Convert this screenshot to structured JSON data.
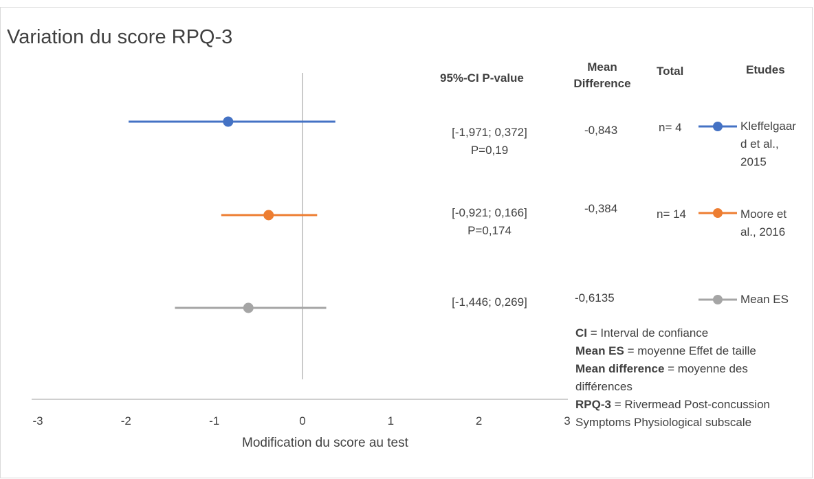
{
  "chart_data": {
    "type": "scatter",
    "title": "Variation du score RPQ-3",
    "xlabel": "Modification du score au test",
    "ylabel": "",
    "xlim": [
      -3,
      3
    ],
    "xticks": [
      -3,
      -2,
      -1,
      0,
      1,
      2,
      3
    ],
    "reference_line": 0,
    "columns": {
      "ci": "95%-CI P-value",
      "mean_difference": "Mean Difference",
      "total": "Total",
      "studies": "Etudes"
    },
    "rows": [
      {
        "name": "Kleffelgaard et al., 2015",
        "name_lines": [
          "Kleffelgaar",
          "d et al.,",
          "2015"
        ],
        "color": "#4472C4",
        "estimate": -0.843,
        "ci_low": -1.971,
        "ci_high": 0.372,
        "ci_text": "[-1,971; 0,372]",
        "p_text": "P=0,19",
        "mean_diff_text": "-0,843",
        "total_text": "n= 4"
      },
      {
        "name": "Moore et al., 2016",
        "name_lines": [
          "Moore et",
          "al., 2016"
        ],
        "color": "#ED7D31",
        "estimate": -0.384,
        "ci_low": -0.921,
        "ci_high": 0.166,
        "ci_text": "[-0,921; 0,166]",
        "p_text": "P=0,174",
        "mean_diff_text": "-0,384",
        "total_text": "n= 14"
      },
      {
        "name": "Mean ES",
        "name_lines": [
          "Mean ES"
        ],
        "color": "#A5A5A5",
        "estimate": -0.6135,
        "ci_low": -1.446,
        "ci_high": 0.269,
        "ci_text": "[-1,446; 0,269]",
        "p_text": "",
        "mean_diff_text": "-0,6135",
        "total_text": ""
      }
    ],
    "glossary": [
      {
        "term": "CI",
        "definition": " = Interval de confiance"
      },
      {
        "term": "Mean ES",
        "definition": " =  moyenne Effet de taille"
      },
      {
        "term": "Mean difference",
        "definition": " = moyenne des différences"
      },
      {
        "term": "RPQ-3",
        "definition": " = Rivermead Post-concussion Symptoms Physiological subscale"
      }
    ]
  }
}
